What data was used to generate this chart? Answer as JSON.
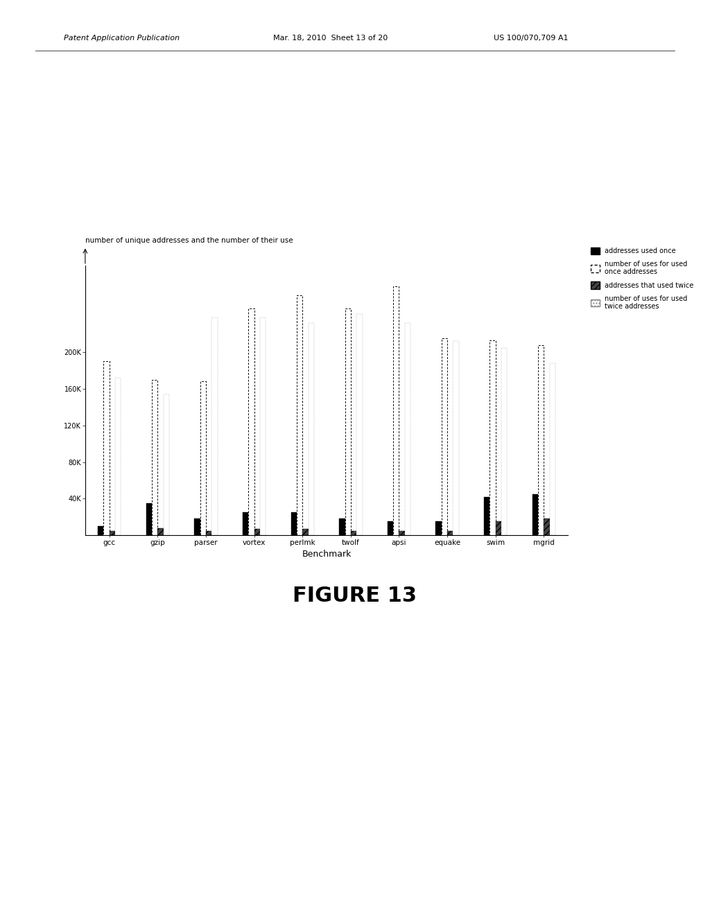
{
  "benchmarks": [
    "gcc",
    "gzip",
    "parser",
    "vortex",
    "perlmk",
    "twolf",
    "apsi",
    "equake",
    "swim",
    "mgrid"
  ],
  "s1_addresses_once": [
    10000,
    35000,
    18000,
    25000,
    25000,
    18000,
    15000,
    15000,
    42000,
    45000
  ],
  "s2_uses_once": [
    190000,
    170000,
    168000,
    248000,
    262000,
    248000,
    272000,
    215000,
    213000,
    208000
  ],
  "s3_addresses_twice": [
    5000,
    8000,
    5000,
    7000,
    7000,
    5000,
    5000,
    5000,
    15000,
    18000
  ],
  "s4_uses_twice": [
    172000,
    154000,
    238000,
    238000,
    232000,
    242000,
    232000,
    212000,
    205000,
    188000
  ],
  "ylim": [
    0,
    295000
  ],
  "yticks": [
    40000,
    80000,
    120000,
    160000,
    200000
  ],
  "ytick_labels": [
    "40K",
    "80K",
    "120K",
    "160K",
    "200K"
  ],
  "ylabel": "number of unique addresses and the number of their use",
  "xlabel": "Benchmark",
  "chart_title": "FIGURE 13",
  "legend_labels": [
    "addresses used once",
    "number of uses for used\nonce addresses",
    "addresses that used twice",
    "number of uses for used\ntwice addresses"
  ],
  "header_left": "Patent Application Publication",
  "header_mid": "Mar. 18, 2010  Sheet 13 of 20",
  "header_right": "US 100/070,709 A1",
  "bar_width": 0.12
}
